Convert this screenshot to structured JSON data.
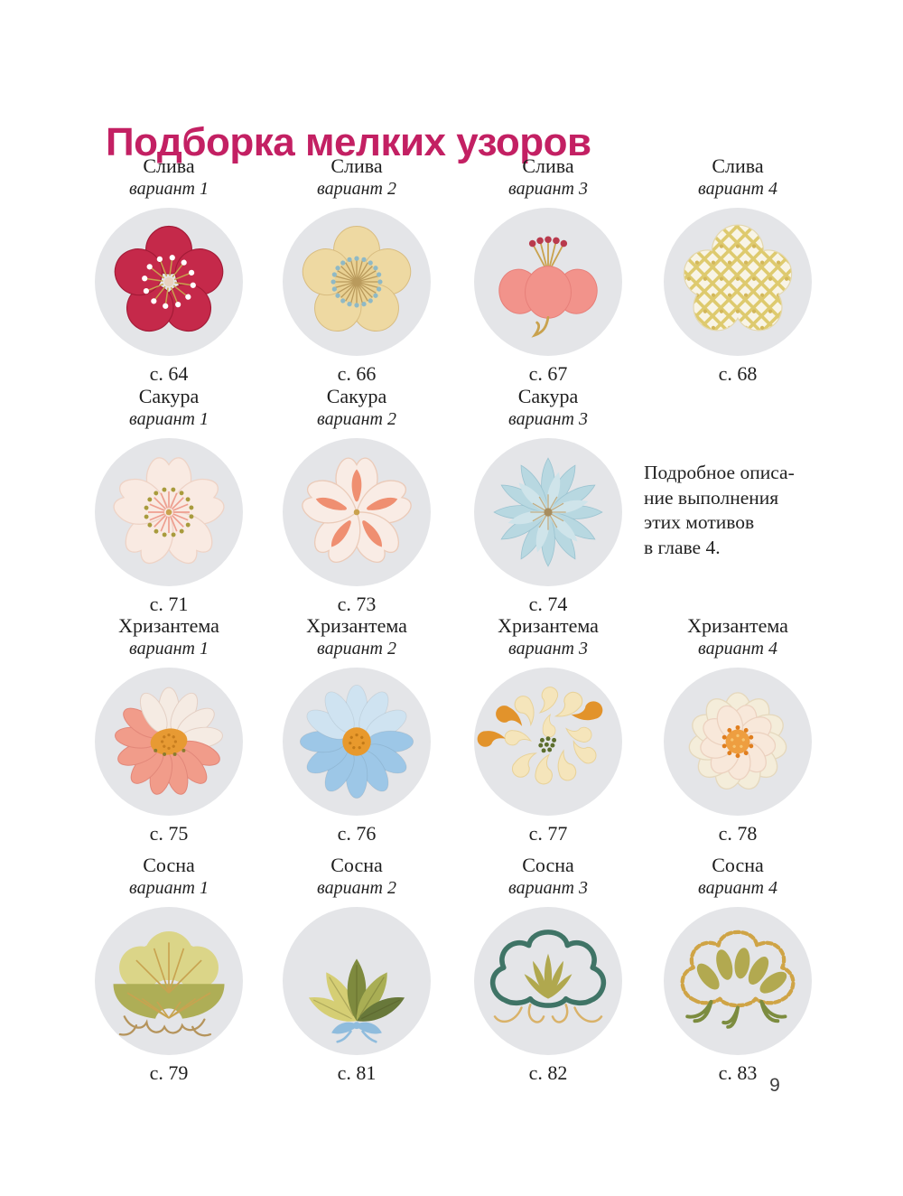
{
  "page": {
    "title": "Подборка мелких узоров",
    "title_color": "#c32063",
    "circle_bg": "#e4e5e8",
    "page_number": "9",
    "note_lines": [
      "Подробное описа-",
      "ние выполнения",
      "этих мотивов",
      "в главе 4."
    ]
  },
  "sections": [
    {
      "flower": "Слива",
      "items": [
        {
          "id": "sliva-1",
          "name": "Слива",
          "variant": "вариант 1",
          "page": "с. 64"
        },
        {
          "id": "sliva-2",
          "name": "Слива",
          "variant": "вариант 2",
          "page": "с. 66"
        },
        {
          "id": "sliva-3",
          "name": "Слива",
          "variant": "вариант 3",
          "page": "с. 67"
        },
        {
          "id": "sliva-4",
          "name": "Слива",
          "variant": "вариант 4",
          "page": "с. 68"
        }
      ]
    },
    {
      "flower": "Сакура",
      "items": [
        {
          "id": "sakura-1",
          "name": "Сакура",
          "variant": "вариант 1",
          "page": "с. 71"
        },
        {
          "id": "sakura-2",
          "name": "Сакура",
          "variant": "вариант 2",
          "page": "с. 73"
        },
        {
          "id": "sakura-3",
          "name": "Сакура",
          "variant": "вариант 3",
          "page": "с. 74"
        }
      ]
    },
    {
      "flower": "Хризантема",
      "items": [
        {
          "id": "khrizantema-1",
          "name": "Хризантема",
          "variant": "вариант 1",
          "page": "с. 75"
        },
        {
          "id": "khrizantema-2",
          "name": "Хризантема",
          "variant": "вариант 2",
          "page": "с. 76"
        },
        {
          "id": "khrizantema-3",
          "name": "Хризантема",
          "variant": "вариант 3",
          "page": "с. 77"
        },
        {
          "id": "khrizantema-4",
          "name": "Хризантема",
          "variant": "вариант 4",
          "page": "с. 78"
        }
      ]
    },
    {
      "flower": "Сосна",
      "items": [
        {
          "id": "sosna-1",
          "name": "Сосна",
          "variant": "вариант 1",
          "page": "с. 79"
        },
        {
          "id": "sosna-2",
          "name": "Сосна",
          "variant": "вариант 2",
          "page": "с. 81"
        },
        {
          "id": "sosna-3",
          "name": "Сосна",
          "variant": "вариант 3",
          "page": "с. 82"
        },
        {
          "id": "sosna-4",
          "name": "Сосна",
          "variant": "вариант 4",
          "page": "с. 83"
        }
      ]
    }
  ],
  "motif_colors": {
    "sliva-1": [
      "#c5294a",
      "#a31a36",
      "#c9a24e",
      "#ffffff",
      "#e8d2c0"
    ],
    "sliva-2": [
      "#eed9a2",
      "#d8bc80",
      "#b99a5c",
      "#8fb9c6",
      "#e9d193"
    ],
    "sliva-3": [
      "#f2938b",
      "#e77f79",
      "#c9a24e",
      "#b93a4d"
    ],
    "sliva-4": [
      "#f8f4e6",
      "#deca6e",
      "#d3b75a"
    ],
    "sakura-1": [
      "#f9eae2",
      "#eed3c6",
      "#ee9e8f",
      "#a89b3c",
      "#c9a24e"
    ],
    "sakura-2": [
      "#f9ece5",
      "#ebcbb9",
      "#ef8f71",
      "#c9a24e"
    ],
    "sakura-3": [
      "#b8d8e1",
      "#9cc4d1",
      "#cfe4ea",
      "#c2ae85",
      "#a88d5e"
    ],
    "khrizantema-1": [
      "#f19c8a",
      "#e28779",
      "#f5ebe3",
      "#e4d0c5",
      "#e79a33",
      "#c77d1f",
      "#8a7c2e"
    ],
    "khrizantema-2": [
      "#9dc7e7",
      "#cfe3f1",
      "#e8992c",
      "#c27a18"
    ],
    "khrizantema-3": [
      "#f5e5bb",
      "#e8d29a",
      "#e2932b",
      "#5c6e2d"
    ],
    "khrizantema-4": [
      "#f4edda",
      "#e5d8bd",
      "#f8e8da",
      "#ecd2c0",
      "#ee9e40",
      "#e07e1e"
    ],
    "sosna-1": [
      "#dbd588",
      "#aeae56",
      "#c8a350",
      "#b5945c"
    ],
    "sosna-2": [
      "#d5ce74",
      "#7e8a3e",
      "#a9ae54",
      "#68783a",
      "#8fbcdd"
    ],
    "sosna-3": [
      "#3f7466",
      "#b0a84e",
      "#d9b269"
    ],
    "sosna-4": [
      "#cfa446",
      "#b2a950",
      "#7c8c3f"
    ]
  }
}
